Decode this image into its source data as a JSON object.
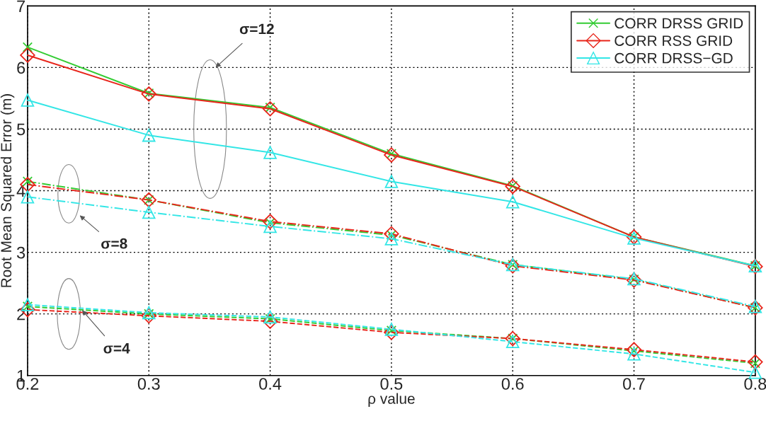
{
  "chart_data": {
    "type": "line",
    "xlabel": "ρ value",
    "ylabel": "Root Mean Squared Error (m)",
    "x": [
      0.2,
      0.3,
      0.4,
      0.5,
      0.6,
      0.7,
      0.8
    ],
    "xlim": [
      0.2,
      0.8
    ],
    "xticks": [
      0.2,
      0.3,
      0.4,
      0.5,
      0.6,
      0.7,
      0.8
    ],
    "ylim": [
      1,
      7
    ],
    "yticks": [
      1,
      2,
      3,
      4,
      5,
      6,
      7
    ],
    "grid": true,
    "legend": "top right",
    "series": [
      {
        "name": "CORR DRSS GRID",
        "color": "#33cc33",
        "marker": "cross",
        "line_style": "solid",
        "values": [
          6.33,
          5.58,
          5.35,
          4.6,
          4.08,
          3.25,
          2.78
        ]
      },
      {
        "name": "CORR RSS GRID",
        "color": "#e8251b",
        "marker": "diamond",
        "line_style": "solid",
        "values": [
          6.2,
          5.57,
          5.33,
          4.58,
          4.07,
          3.25,
          2.77
        ]
      },
      {
        "name": "CORR DRSS−GD",
        "color": "#33e6e6",
        "marker": "triangle",
        "line_style": "solid",
        "values": [
          5.47,
          4.9,
          4.62,
          4.15,
          3.82,
          3.23,
          2.78
        ]
      },
      {
        "color": "#33cc33",
        "marker": "cross",
        "line_style": "dashdot",
        "values": [
          4.15,
          3.85,
          3.48,
          3.28,
          2.8,
          2.56,
          2.1
        ]
      },
      {
        "color": "#e8251b",
        "marker": "diamond",
        "line_style": "dashdot",
        "values": [
          4.1,
          3.85,
          3.5,
          3.3,
          2.78,
          2.55,
          2.1
        ]
      },
      {
        "color": "#33e6e6",
        "marker": "triangle",
        "line_style": "dashdot",
        "values": [
          3.9,
          3.65,
          3.42,
          3.22,
          2.8,
          2.57,
          2.12
        ]
      },
      {
        "color": "#33cc33",
        "marker": "cross",
        "line_style": "dashed",
        "values": [
          2.12,
          2.0,
          1.92,
          1.73,
          1.6,
          1.4,
          1.2
        ]
      },
      {
        "color": "#e8251b",
        "marker": "diamond",
        "line_style": "dashed",
        "values": [
          2.07,
          1.97,
          1.88,
          1.7,
          1.6,
          1.42,
          1.22
        ]
      },
      {
        "color": "#33e6e6",
        "marker": "triangle",
        "line_style": "dashed",
        "values": [
          2.15,
          2.02,
          1.95,
          1.75,
          1.55,
          1.35,
          1.05
        ]
      }
    ],
    "annotations": [
      "σ=12",
      "σ=8",
      {
        "text": "σ=4",
        "x": 0.245,
        "y": 2.06
      }
    ]
  }
}
